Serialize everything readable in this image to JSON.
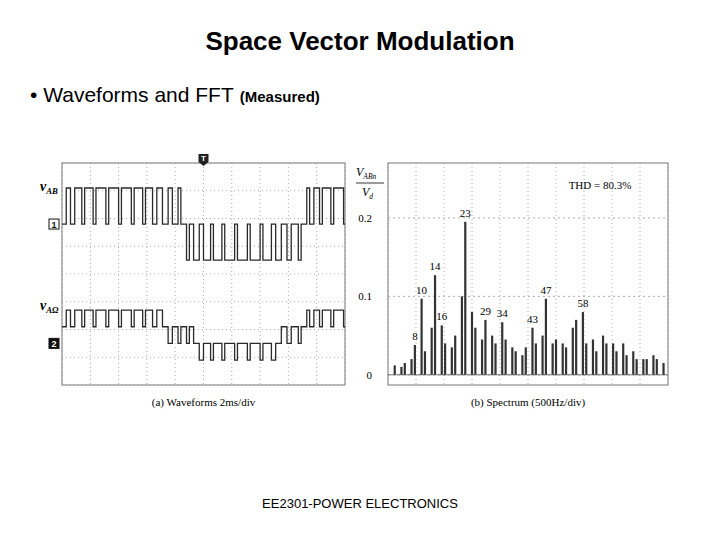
{
  "slide": {
    "title": "Space Vector Modulation",
    "bullet": "• Waveforms and FFT",
    "bullet_note": "(Measured)",
    "footer": "EE2301-POWER ELECTRONICS"
  },
  "chart_data": [
    {
      "type": "line",
      "caption": "(a) Waveforms 2ms/div",
      "line_style": "step",
      "grid": true,
      "tick_labels": false,
      "xlim": [
        0,
        20
      ],
      "ylim": [
        -4,
        4
      ],
      "xticks": [
        0,
        2,
        4,
        6,
        8,
        10,
        12,
        14,
        16,
        18,
        20
      ],
      "yticks": [
        -4,
        -3,
        -2,
        -1,
        0,
        1,
        2,
        3,
        4
      ],
      "trigger": {
        "label": "T",
        "x": 10
      },
      "series": [
        {
          "name": "vAB",
          "channel": "1",
          "reference": 1.8,
          "color": "#2a2a2a",
          "x": [
            0,
            0.3,
            0.6,
            0.9,
            1.4,
            1.6,
            2.2,
            2.4,
            3.1,
            3.3,
            4.0,
            4.2,
            4.9,
            5.1,
            5.7,
            5.9,
            6.4,
            6.7,
            7.1,
            7.5,
            7.8,
            8.2,
            8.4,
            8.8,
            9.0,
            9.3,
            9.7,
            10.0,
            10.5,
            10.7,
            11.3,
            11.5,
            12.2,
            12.4,
            13.1,
            13.3,
            14.0,
            14.2,
            14.8,
            15.1,
            15.5,
            15.9,
            16.2,
            16.7,
            16.9,
            17.3,
            17.5,
            17.8,
            18.2,
            18.4,
            19.0,
            19.2,
            19.9
          ],
          "values": [
            1.8,
            3.1,
            1.8,
            3.1,
            1.8,
            3.1,
            1.8,
            3.1,
            1.8,
            3.1,
            1.8,
            3.1,
            1.8,
            3.1,
            1.8,
            3.1,
            1.8,
            3.1,
            1.8,
            3.1,
            1.8,
            3.1,
            1.8,
            0.5,
            1.8,
            0.5,
            1.8,
            0.5,
            1.8,
            0.5,
            1.8,
            0.5,
            1.8,
            0.5,
            1.8,
            0.5,
            1.8,
            0.5,
            1.8,
            0.5,
            1.8,
            0.5,
            1.8,
            0.5,
            1.8,
            3.1,
            1.8,
            3.1,
            1.8,
            3.1,
            1.8,
            3.1,
            1.8
          ]
        },
        {
          "name": "vAΩ",
          "channel": "2",
          "reference": -2.5,
          "color": "#2a2a2a",
          "x": [
            0,
            0.3,
            0.6,
            0.9,
            1.4,
            1.6,
            2.2,
            2.4,
            3.1,
            3.3,
            4.0,
            4.2,
            4.9,
            5.1,
            5.7,
            5.9,
            6.4,
            6.7,
            7.1,
            7.5,
            7.8,
            8.2,
            8.4,
            8.8,
            9.0,
            9.3,
            9.7,
            10.0,
            10.5,
            10.7,
            11.3,
            11.5,
            12.2,
            12.4,
            13.1,
            13.3,
            14.0,
            14.2,
            14.8,
            15.1,
            15.5,
            15.9,
            16.2,
            16.7,
            16.9,
            17.3,
            17.5,
            17.8,
            18.2,
            18.4,
            19.0,
            19.2,
            19.9
          ],
          "values": [
            -1.9,
            -1.3,
            -1.9,
            -1.3,
            -1.9,
            -1.3,
            -1.9,
            -1.3,
            -1.9,
            -1.3,
            -1.9,
            -1.3,
            -1.9,
            -1.3,
            -1.9,
            -1.3,
            -1.9,
            -1.3,
            -1.9,
            -2.5,
            -1.9,
            -2.5,
            -1.9,
            -2.5,
            -1.9,
            -2.5,
            -3.1,
            -2.5,
            -3.1,
            -2.5,
            -3.1,
            -2.5,
            -3.1,
            -2.5,
            -3.1,
            -2.5,
            -3.1,
            -2.5,
            -3.1,
            -2.5,
            -1.9,
            -2.5,
            -1.9,
            -2.5,
            -1.9,
            -1.3,
            -1.9,
            -1.3,
            -1.9,
            -1.3,
            -1.9,
            -1.3,
            -1.9
          ]
        }
      ]
    },
    {
      "type": "bar",
      "caption": "(b) Spectrum (500Hz/div)",
      "ylabel": {
        "numerator": "VABn",
        "denominator": "Vd"
      },
      "annotation": "THD = 80.3%",
      "grid": true,
      "tick_labels": "y",
      "color": "#333333",
      "xlim": [
        0,
        5000
      ],
      "ylim": [
        -0.013,
        0.27
      ],
      "xticks": [
        0,
        500,
        1000,
        1500,
        2000,
        2500,
        3000,
        3500,
        4000,
        4500,
        5000
      ],
      "yticks": [
        0,
        0.1,
        0.2
      ],
      "x": [
        120,
        240,
        300,
        420,
        480,
        600,
        660,
        780,
        840,
        960,
        1020,
        1140,
        1200,
        1320,
        1380,
        1500,
        1560,
        1680,
        1740,
        1860,
        1920,
        2040,
        2100,
        2220,
        2280,
        2400,
        2460,
        2580,
        2640,
        2760,
        2820,
        2940,
        3000,
        3120,
        3180,
        3300,
        3360,
        3480,
        3540,
        3660,
        3720,
        3840,
        3900,
        4020,
        4080,
        4200,
        4260,
        4380,
        4440,
        4560,
        4620,
        4740,
        4800,
        4920
      ],
      "values": [
        0.012,
        0.01,
        0.015,
        0.02,
        0.038,
        0.097,
        0.03,
        0.06,
        0.127,
        0.063,
        0.04,
        0.035,
        0.05,
        0.1,
        0.195,
        0.08,
        0.06,
        0.045,
        0.07,
        0.05,
        0.04,
        0.067,
        0.045,
        0.035,
        0.03,
        0.025,
        0.035,
        0.06,
        0.04,
        0.05,
        0.097,
        0.04,
        0.045,
        0.04,
        0.035,
        0.06,
        0.07,
        0.08,
        0.04,
        0.045,
        0.03,
        0.05,
        0.04,
        0.04,
        0.03,
        0.04,
        0.025,
        0.03,
        0.02,
        0.02,
        0.02,
        0.025,
        0.02,
        0.015
      ],
      "bar_labels": [
        null,
        null,
        null,
        null,
        "8",
        "10",
        null,
        null,
        "14",
        "16",
        null,
        null,
        null,
        null,
        "23",
        null,
        null,
        null,
        "29",
        null,
        null,
        "34",
        null,
        null,
        null,
        null,
        null,
        "43",
        null,
        null,
        "47",
        null,
        null,
        null,
        null,
        null,
        null,
        "58",
        null,
        null,
        null,
        null,
        null,
        null,
        null,
        null,
        null,
        null,
        null,
        null,
        null,
        null,
        null,
        null
      ]
    }
  ]
}
